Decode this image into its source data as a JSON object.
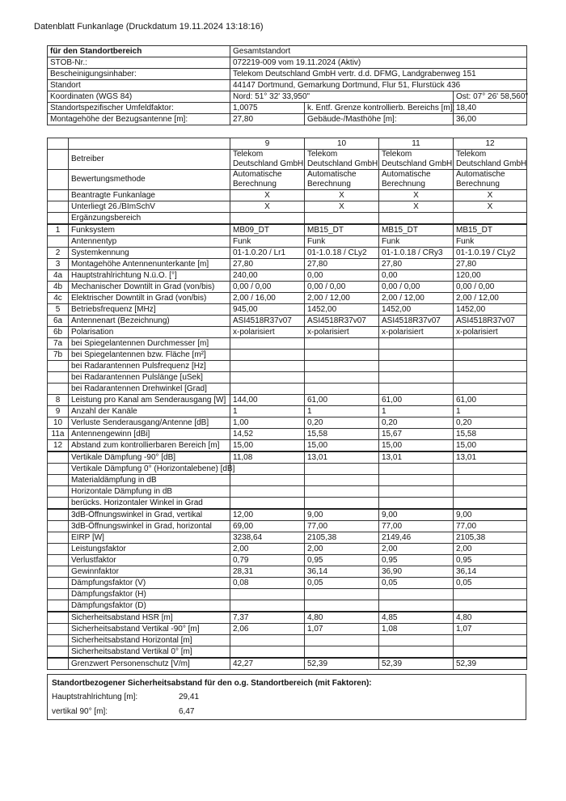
{
  "title": "Datenblatt Funkanlage (Druckdatum 19.11.2024 13:18:16)",
  "top_table": {
    "standortbereich_label": "für den Standortbereich",
    "standortbereich_value": "Gesamtstandort",
    "stob_label": "STOB-Nr.:",
    "stob_value": "072219-009 vom 19.11.2024 (Aktiv)",
    "inhaber_label": "Bescheinigungsinhaber:",
    "inhaber_value": "Telekom Deutschland GmbH vertr. d.d. DFMG, Landgrabenweg 151",
    "standort_label": "Standort",
    "standort_value": "44147 Dortmund, Gemarkung Dortmund, Flur 51, Flurstück 436",
    "koord_label": "Koordinaten (WGS 84)",
    "nord": "Nord: 51° 32' 33,950\"",
    "ost": "Ost: 07° 26' 58,560\"",
    "umfeld_label": "Standortspezifischer Umfeldfaktor:",
    "umfeld_value": "1,0075",
    "grenze_label": "k. Entf. Grenze kontrollierb. Bereichs [m]:",
    "grenze_value": "18,40",
    "montage_label": "Montagehöhe der Bezugsantenne [m]:",
    "montage_value": "27,80",
    "gebaeude_label": "Gebäude-/Masthöhe [m]:",
    "gebaeude_value": "36,00"
  },
  "main_table": {
    "columns": [
      "9",
      "10",
      "11",
      "12"
    ],
    "header_rows": [
      {
        "label": "Betreiber",
        "values": [
          [
            "Telekom",
            "Deutschland GmbH"
          ],
          [
            "Telekom",
            "Deutschland GmbH"
          ],
          [
            "Telekom",
            "Deutschland GmbH"
          ],
          [
            "Telekom",
            "Deutschland GmbH"
          ]
        ]
      },
      {
        "label": "Bewertungsmethode",
        "values": [
          [
            "Automatische",
            "Berechnung"
          ],
          [
            "Automatische",
            "Berechnung"
          ],
          [
            "Automatische",
            "Berechnung"
          ],
          [
            "Automatische",
            "Berechnung"
          ]
        ]
      }
    ],
    "rows": [
      {
        "num": "",
        "label": "Beantragte Funkanlage",
        "values": [
          "X",
          "X",
          "X",
          "X"
        ],
        "center": true
      },
      {
        "num": "",
        "label": "Unterliegt 26./BImSchV",
        "values": [
          "X",
          "X",
          "X",
          "X"
        ],
        "center": true
      },
      {
        "num": "",
        "label": "Ergänzungsbereich",
        "values": [
          "",
          "",
          "",
          ""
        ]
      },
      {
        "num": "1",
        "label": "Funksystem",
        "values": [
          "MB09_DT",
          "MB15_DT",
          "MB15_DT",
          "MB15_DT"
        ]
      },
      {
        "num": "",
        "label": "Antennentyp",
        "values": [
          "Funk",
          "Funk",
          "Funk",
          "Funk"
        ]
      },
      {
        "num": "2",
        "label": "Systemkennung",
        "values": [
          "01-1.0.20 / Lr1",
          "01-1.0.18 / CLy2",
          "01-1.0.18 / CRy3",
          "01-1.0.19 / CLy2"
        ]
      },
      {
        "num": "3",
        "label": "Montagehöhe Antennenunterkante [m]",
        "values": [
          "27,80",
          "27,80",
          "27,80",
          "27,80"
        ]
      },
      {
        "num": "4a",
        "label": "Hauptstrahlrichtung N.ü.O. [°]",
        "values": [
          "240,00",
          "0,00",
          "0,00",
          "120,00"
        ]
      },
      {
        "num": "4b",
        "label": "Mechanischer Downtilt in Grad (von/bis)",
        "values": [
          "0,00 / 0,00",
          "0,00 / 0,00",
          "0,00 / 0,00",
          "0,00 / 0,00"
        ]
      },
      {
        "num": "4c",
        "label": "Elektrischer Downtilt in Grad (von/bis)",
        "values": [
          "2,00 / 16,00",
          "2,00 / 12,00",
          "2,00 / 12,00",
          "2,00 / 12,00"
        ]
      },
      {
        "num": "5",
        "label": "Betriebsfrequenz [MHz]",
        "values": [
          "945,00",
          "1452,00",
          "1452,00",
          "1452,00"
        ]
      },
      {
        "num": "6a",
        "label": "Antennenart (Bezeichnung)",
        "values": [
          "ASI4518R37v07",
          "ASI4518R37v07",
          "ASI4518R37v07",
          "ASI4518R37v07"
        ]
      },
      {
        "num": "6b",
        "label": "Polarisation",
        "values": [
          "x-polarisiert",
          "x-polarisiert",
          "x-polarisiert",
          "x-polarisiert"
        ]
      },
      {
        "num": "7a",
        "label": "bei Spiegelantennen Durchmesser [m]",
        "values": [
          "",
          "",
          "",
          ""
        ]
      },
      {
        "num": "7b",
        "label": "bei Spiegelantennen bzw. Fläche [m²]",
        "values": [
          "",
          "",
          "",
          ""
        ]
      },
      {
        "num": "",
        "label": "bei Radarantennen Pulsfrequenz [Hz]",
        "values": [
          "",
          "",
          "",
          ""
        ]
      },
      {
        "num": "",
        "label": "bei Radarantennen Pulslänge [uSek]",
        "values": [
          "",
          "",
          "",
          ""
        ]
      },
      {
        "num": "",
        "label": "bei Radarantennen Drehwinkel [Grad]",
        "values": [
          "",
          "",
          "",
          ""
        ]
      },
      {
        "num": "8",
        "label": "Leistung pro Kanal am Senderausgang  [W]",
        "values": [
          "144,00",
          "61,00",
          "61,00",
          "61,00"
        ]
      },
      {
        "num": "9",
        "label": "Anzahl der Kanäle",
        "values": [
          "1",
          "1",
          "1",
          "1"
        ]
      },
      {
        "num": "10",
        "label": "Verluste Senderausgang/Antenne [dB]",
        "values": [
          "1,00",
          "0,20",
          "0,20",
          "0,20"
        ]
      },
      {
        "num": "11a",
        "label": "Antennengewinn [dBi]",
        "values": [
          "14,52",
          "15,58",
          "15,67",
          "15,58"
        ]
      },
      {
        "num": "12",
        "label": "Abstand zum kontrollierbaren Bereich [m]",
        "values": [
          "15,00",
          "15,00",
          "15,00",
          "15,00"
        ]
      },
      {
        "num": "",
        "label": "Vertikale Dämpfung -90° [dB]",
        "values": [
          "11,08",
          "13,01",
          "13,01",
          "13,01"
        ]
      },
      {
        "num": "",
        "label": "Vertikale Dämpfung 0° (Horizontalebene) [dB]",
        "values": [
          "",
          "",
          "",
          ""
        ]
      },
      {
        "num": "",
        "label": "Materialdämpfung in dB",
        "values": [
          "",
          "",
          "",
          ""
        ]
      },
      {
        "num": "",
        "label": "Horizontale Dämpfung in dB",
        "values": [
          "",
          "",
          "",
          ""
        ]
      },
      {
        "num": "",
        "label": "berücks. Horizontaler Winkel in Grad",
        "values": [
          "",
          "",
          "",
          ""
        ]
      },
      {
        "num": "",
        "label": "3dB-Öffnungswinkel in Grad, vertikal",
        "values": [
          "12,00",
          "9,00",
          "9,00",
          "9,00"
        ]
      },
      {
        "num": "",
        "label": "3dB-Öffnungswinkel in Grad, horizontal",
        "values": [
          "69,00",
          "77,00",
          "77,00",
          "77,00"
        ]
      },
      {
        "num": "",
        "label": "EIRP [W]",
        "values": [
          "3238,64",
          "2105,38",
          "2149,46",
          "2105,38"
        ]
      },
      {
        "num": "",
        "label": "Leistungsfaktor",
        "values": [
          "2,00",
          "2,00",
          "2,00",
          "2,00"
        ]
      },
      {
        "num": "",
        "label": "Verlustfaktor",
        "values": [
          "0,79",
          "0,95",
          "0,95",
          "0,95"
        ]
      },
      {
        "num": "",
        "label": "Gewinnfaktor",
        "values": [
          "28,31",
          "36,14",
          "36,90",
          "36,14"
        ]
      },
      {
        "num": "",
        "label": "Dämpfungsfaktor (V)",
        "values": [
          "0,08",
          "0,05",
          "0,05",
          "0,05"
        ]
      },
      {
        "num": "",
        "label": "Dämpfungsfaktor (H)",
        "values": [
          "",
          "",
          "",
          ""
        ]
      },
      {
        "num": "",
        "label": "Dämpfungsfaktor (D)",
        "values": [
          "",
          "",
          "",
          ""
        ]
      },
      {
        "num": "",
        "label": "Sicherheitsabstand HSR [m]",
        "values": [
          "7,37",
          "4,80",
          "4,85",
          "4,80"
        ]
      },
      {
        "num": "",
        "label": "Sicherheitsabstand Vertikal -90° [m]",
        "values": [
          "2,06",
          "1,07",
          "1,08",
          "1,07"
        ]
      },
      {
        "num": "",
        "label": "Sicherheitsabstand Horizontal [m]",
        "values": [
          "",
          "",
          "",
          ""
        ]
      },
      {
        "num": "",
        "label": "Sicherheitsabstand Vertikal 0° [m]",
        "values": [
          "",
          "",
          "",
          ""
        ]
      },
      {
        "num": "",
        "label": "Grenzwert Personenschutz [V/m]",
        "values": [
          "42,27",
          "52,39",
          "52,39",
          "52,39"
        ]
      }
    ]
  },
  "summary": {
    "title": "Standortbezogener Sicherheitsabstand für den o.g. Standortbereich (mit Faktoren):",
    "hsr_label": "Hauptstrahlrichtung [m]:",
    "hsr_value": "29,41",
    "vert_label": "vertikal 90° [m]:",
    "vert_value": "6,47"
  }
}
